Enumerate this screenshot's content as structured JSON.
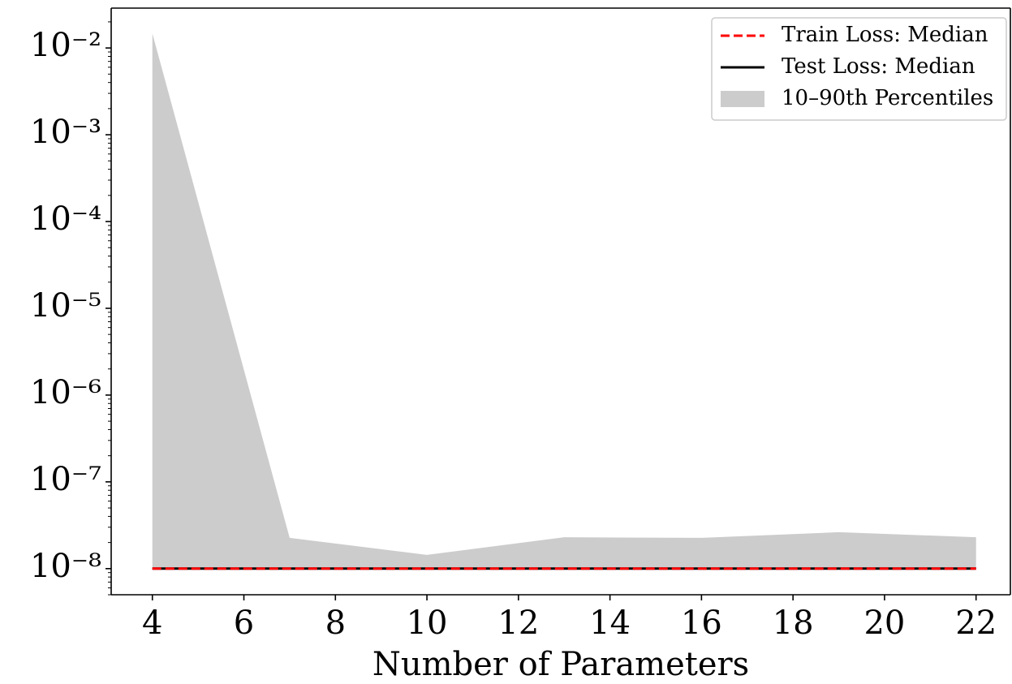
{
  "chart_data": {
    "type": "line",
    "x_label": "Number of Parameters",
    "x": [
      4,
      7,
      10,
      13,
      16,
      19,
      22
    ],
    "series": [
      {
        "name": "Train Loss: Median",
        "color": "#ff0000",
        "dash": true,
        "values": [
          1e-08,
          1e-08,
          1e-08,
          1e-08,
          1e-08,
          1e-08,
          1e-08
        ]
      },
      {
        "name": "Test Loss: Median",
        "color": "#000000",
        "dash": false,
        "values": [
          1e-08,
          1e-08,
          1e-08,
          1e-08,
          1e-08,
          1e-08,
          1e-08
        ]
      }
    ],
    "band": {
      "name": "10–90th Percentiles",
      "color": "#cccccc",
      "lower": [
        1e-08,
        1e-08,
        1e-08,
        1e-08,
        1e-08,
        1e-08,
        1e-08
      ],
      "upper": [
        0.0147,
        2.26e-08,
        1.44e-08,
        2.3e-08,
        2.26e-08,
        2.63e-08,
        2.3e-08
      ]
    },
    "xlim": [
      3.1,
      22.75
    ],
    "ylim": [
      5e-09,
      0.0288
    ],
    "log_y": true,
    "xticks": [
      4,
      6,
      8,
      10,
      12,
      14,
      16,
      18,
      20,
      22
    ],
    "yticks": [
      {
        "value": 1e-08,
        "label": "10⁻⁸"
      },
      {
        "value": 1e-07,
        "label": "10⁻⁷"
      },
      {
        "value": 1e-06,
        "label": "10⁻⁶"
      },
      {
        "value": 1e-05,
        "label": "10⁻⁵"
      },
      {
        "value": 0.0001,
        "label": "10⁻⁴"
      },
      {
        "value": 0.001,
        "label": "10⁻³"
      },
      {
        "value": 0.01,
        "label": "10⁻²"
      }
    ],
    "legend": "upper right"
  }
}
